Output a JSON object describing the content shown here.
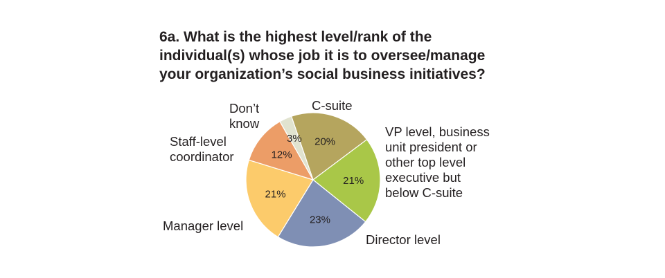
{
  "chart_data": {
    "type": "pie",
    "title": "6a. What is the highest level/rank of the individual(s) whose job it is to oversee/manage your organization’s social business initiatives?",
    "title_lines": [
      "6a. What is the highest level/rank of the",
      "individual(s) whose job it is to oversee/manage",
      "your organization’s social business initiatives?"
    ],
    "slices": [
      {
        "label": "C-suite",
        "label_lines": [
          "C-suite"
        ],
        "value": 20,
        "value_label": "20%",
        "color": "#b5a55e"
      },
      {
        "label": "VP level, business unit president or other top level executive but below C-suite",
        "label_lines": [
          "VP level, business",
          "unit president or",
          "other top level",
          "executive but",
          "below C-suite"
        ],
        "value": 21,
        "value_label": "21%",
        "color": "#a9c748"
      },
      {
        "label": "Director level",
        "label_lines": [
          "Director level"
        ],
        "value": 23,
        "value_label": "23%",
        "color": "#7f8fb4"
      },
      {
        "label": "Manager level",
        "label_lines": [
          "Manager level"
        ],
        "value": 21,
        "value_label": "21%",
        "color": "#fccb6b"
      },
      {
        "label": "Staff-level coordinator",
        "label_lines": [
          "Staff-level",
          "coordinator"
        ],
        "value": 12,
        "value_label": "12%",
        "color": "#ec9d67"
      },
      {
        "label": "Don’t know",
        "label_lines": [
          "Don’t",
          "know"
        ],
        "value": 3,
        "value_label": "3%",
        "color": "#e1e3cf"
      }
    ],
    "legend": "none",
    "grid": false
  }
}
